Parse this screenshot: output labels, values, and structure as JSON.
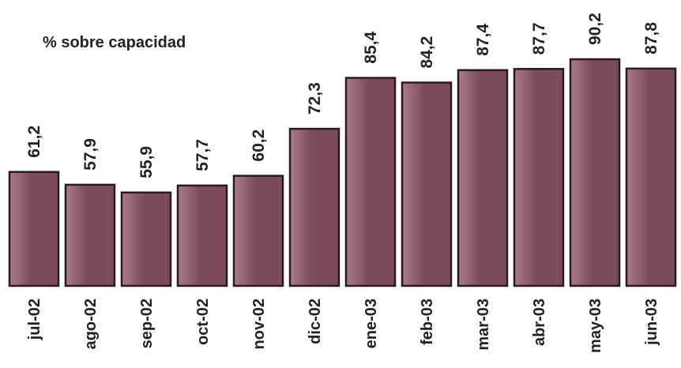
{
  "chart_data": {
    "type": "bar",
    "title": "% sobre capacidad",
    "xlabel": "",
    "ylabel": "",
    "categories": [
      "jul-02",
      "ago-02",
      "sep-02",
      "oct-02",
      "nov-02",
      "dic-02",
      "ene-03",
      "feb-03",
      "mar-03",
      "abr-03",
      "may-03",
      "jun-03"
    ],
    "values": [
      61.2,
      57.9,
      55.9,
      57.7,
      60.2,
      72.3,
      85.4,
      84.2,
      87.4,
      87.7,
      90.2,
      87.8
    ],
    "value_labels": [
      "61,2",
      "57,9",
      "55,9",
      "57,7",
      "60,2",
      "72,3",
      "85,4",
      "84,2",
      "87,4",
      "87,7",
      "90,2",
      "87,8"
    ],
    "ylim": [
      40,
      100
    ],
    "grid": false,
    "legend": "none",
    "colors": {
      "bar_fill": "#7b4b5d",
      "bar_highlight": "#a97b8c",
      "bar_stroke": "#2a1a20",
      "text": "#222222"
    }
  }
}
